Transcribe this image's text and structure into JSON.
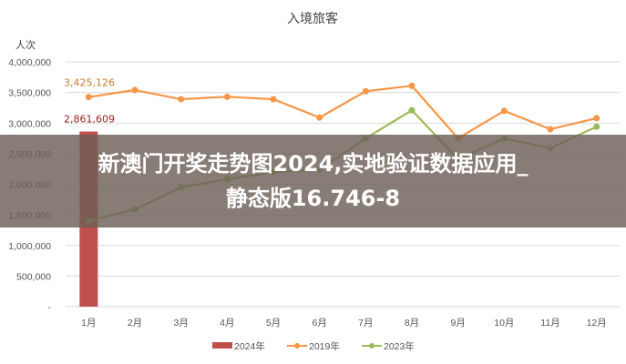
{
  "chart_data": {
    "type": "bar+line",
    "title": "入境旅客",
    "ylabel": "人次",
    "ylim": [
      0,
      4000000
    ],
    "yticks": [
      "-",
      "500,000",
      "1,000,000",
      "1,500,000",
      "2,000,000",
      "2,500,000",
      "3,000,000",
      "3,500,000",
      "4,000,000"
    ],
    "categories": [
      "1月",
      "2月",
      "3月",
      "4月",
      "5月",
      "6月",
      "7月",
      "8月",
      "9月",
      "10月",
      "11月",
      "12月"
    ],
    "grid": true,
    "legend": "bottom",
    "series": [
      {
        "name": "2024年",
        "type": "bar",
        "color": "#c0504d",
        "values": [
          2861609,
          null,
          null,
          null,
          null,
          null,
          null,
          null,
          null,
          null,
          null,
          null
        ],
        "label": "2,861,609"
      },
      {
        "name": "2019年",
        "type": "line",
        "color": "#f79646",
        "values": [
          3425126,
          3540000,
          3390000,
          3430000,
          3390000,
          3090000,
          3520000,
          3610000,
          2750000,
          3200000,
          2900000,
          3080000
        ],
        "label": "3,425,126"
      },
      {
        "name": "2023年",
        "type": "line",
        "color": "#9bbb59",
        "values": [
          1400000,
          1590000,
          1950000,
          2080000,
          2200000,
          2240000,
          2750000,
          3210000,
          2410000,
          2750000,
          2590000,
          2940000
        ]
      }
    ]
  },
  "overlay": {
    "line1": "新澳门开奖走势图2024,实地验证数据应用_",
    "line2": "静态版16.746-8"
  }
}
